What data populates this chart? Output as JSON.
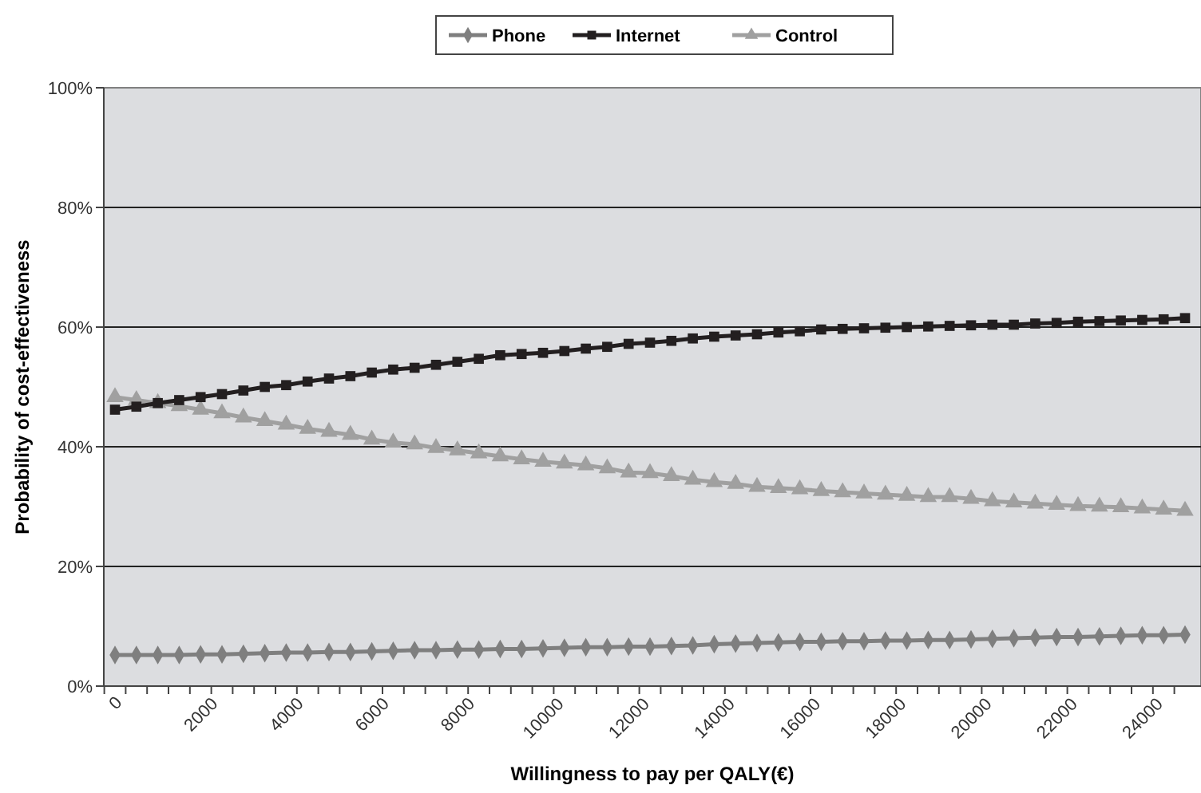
{
  "chart_data": {
    "type": "line",
    "xlabel": "Willingness to pay per QALY(€)",
    "ylabel": "Probability of cost-effectiveness",
    "categories": [
      "0",
      null,
      null,
      null,
      "2000",
      null,
      null,
      null,
      "4000",
      null,
      null,
      null,
      "6000",
      null,
      null,
      null,
      "8000",
      null,
      null,
      null,
      "10000",
      null,
      null,
      null,
      "12000",
      null,
      null,
      null,
      "14000",
      null,
      null,
      null,
      "16000",
      null,
      null,
      null,
      "18000",
      null,
      null,
      null,
      "20000",
      null,
      null,
      null,
      "22000",
      null,
      null,
      null,
      "24000",
      null,
      null
    ],
    "ylim": [
      0,
      100
    ],
    "yticks": [
      {
        "value": 0,
        "label": "0%"
      },
      {
        "value": 20,
        "label": "20%"
      },
      {
        "value": 40,
        "label": "40%"
      },
      {
        "value": 60,
        "label": "60%"
      },
      {
        "value": 80,
        "label": "80%"
      },
      {
        "value": 100,
        "label": "100%"
      }
    ],
    "grid": "y",
    "legend": "top",
    "series": [
      {
        "name": "Phone",
        "color": "#7f7f7f",
        "marker": "diamond",
        "values": [
          5.2,
          5.2,
          5.2,
          5.2,
          5.3,
          5.3,
          5.4,
          5.5,
          5.6,
          5.6,
          5.7,
          5.7,
          5.8,
          5.9,
          6.0,
          6.0,
          6.1,
          6.1,
          6.2,
          6.2,
          6.3,
          6.4,
          6.5,
          6.5,
          6.6,
          6.6,
          6.7,
          6.8,
          7.0,
          7.1,
          7.2,
          7.3,
          7.4,
          7.4,
          7.5,
          7.5,
          7.6,
          7.6,
          7.7,
          7.7,
          7.8,
          7.9,
          8.0,
          8.1,
          8.2,
          8.2,
          8.3,
          8.4,
          8.5,
          8.5,
          8.6
        ]
      },
      {
        "name": "Internet",
        "color": "#231f20",
        "marker": "square",
        "values": [
          46.2,
          46.7,
          47.3,
          47.8,
          48.3,
          48.8,
          49.4,
          50.0,
          50.3,
          50.9,
          51.4,
          51.8,
          52.4,
          52.9,
          53.2,
          53.7,
          54.2,
          54.7,
          55.3,
          55.5,
          55.7,
          56.0,
          56.4,
          56.7,
          57.2,
          57.4,
          57.7,
          58.1,
          58.4,
          58.6,
          58.8,
          59.1,
          59.3,
          59.6,
          59.7,
          59.8,
          59.9,
          60.0,
          60.1,
          60.2,
          60.3,
          60.4,
          60.4,
          60.6,
          60.7,
          60.9,
          61.0,
          61.1,
          61.2,
          61.3,
          61.5
        ]
      },
      {
        "name": "Control",
        "color": "#a0a0a0",
        "marker": "triangle",
        "values": [
          48.3,
          47.8,
          47.3,
          46.8,
          46.2,
          45.6,
          44.9,
          44.3,
          43.7,
          43.0,
          42.5,
          42.0,
          41.2,
          40.7,
          40.4,
          39.8,
          39.4,
          38.9,
          38.4,
          37.9,
          37.5,
          37.2,
          36.9,
          36.4,
          35.7,
          35.6,
          35.1,
          34.5,
          34.1,
          33.8,
          33.3,
          33.1,
          32.9,
          32.6,
          32.4,
          32.2,
          32.0,
          31.8,
          31.6,
          31.6,
          31.3,
          30.9,
          30.7,
          30.5,
          30.3,
          30.1,
          30.0,
          29.9,
          29.7,
          29.5,
          29.3
        ]
      }
    ]
  }
}
